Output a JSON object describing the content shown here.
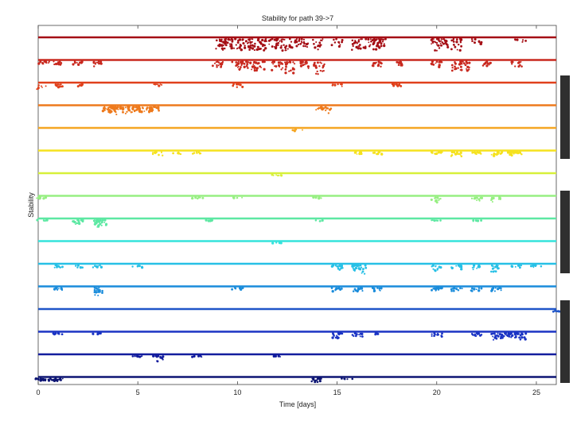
{
  "chart_data": {
    "type": "scatter",
    "title": "Stability for path 39->7",
    "xlabel": "Time [days]",
    "ylabel": "Stability",
    "xlim": [
      0,
      26
    ],
    "x_ticks": [
      "0",
      "5",
      "10",
      "15",
      "20",
      "25"
    ],
    "grid": false,
    "legend": "none",
    "series": [
      {
        "color": "#a50f15",
        "dips": [
          [
            9.2,
            1.0,
            4
          ],
          [
            9.5,
            1.0,
            3
          ],
          [
            9.9,
            1.0,
            3
          ],
          [
            10.3,
            1.0,
            3
          ],
          [
            10.8,
            1.1,
            5
          ],
          [
            11.2,
            1.1,
            4
          ],
          [
            11.8,
            1.0,
            3
          ],
          [
            12.2,
            1.1,
            5
          ],
          [
            12.8,
            0.9,
            3
          ],
          [
            13.3,
            1.0,
            3
          ],
          [
            14.0,
            1.0,
            3
          ],
          [
            15.0,
            0.7,
            2
          ],
          [
            16.0,
            1.0,
            4
          ],
          [
            16.6,
            0.9,
            3
          ],
          [
            17.1,
            1.0,
            4
          ],
          [
            17.2,
            0.6,
            2
          ],
          [
            20.0,
            1.1,
            5
          ],
          [
            20.3,
            0.9,
            3
          ],
          [
            21.0,
            1.1,
            5
          ],
          [
            22.0,
            0.6,
            2
          ],
          [
            24.2,
            0.4,
            1
          ]
        ]
      },
      {
        "color": "#c8281e",
        "dips": [
          [
            0.3,
            0.2,
            2
          ],
          [
            1.0,
            0.4,
            2
          ],
          [
            2.0,
            0.3,
            2
          ],
          [
            3.0,
            0.5,
            2
          ],
          [
            9.0,
            0.5,
            3
          ],
          [
            10.0,
            0.9,
            4
          ],
          [
            10.6,
            0.8,
            4
          ],
          [
            11.1,
            0.9,
            4
          ],
          [
            12.0,
            0.8,
            4
          ],
          [
            12.6,
            1.1,
            5
          ],
          [
            13.3,
            0.8,
            3
          ],
          [
            14.1,
            1.2,
            4
          ],
          [
            17.0,
            0.5,
            3
          ],
          [
            18.0,
            0.4,
            2
          ],
          [
            20.0,
            0.5,
            3
          ],
          [
            21.0,
            0.9,
            4
          ],
          [
            21.5,
            1.0,
            3
          ],
          [
            22.5,
            0.4,
            2
          ],
          [
            24.0,
            0.5,
            2
          ]
        ]
      },
      {
        "color": "#e0401b",
        "dips": [
          [
            0.2,
            0.5,
            1
          ],
          [
            1.0,
            0.3,
            2
          ],
          [
            2.0,
            0.2,
            1
          ],
          [
            6.0,
            0.2,
            1
          ],
          [
            10.0,
            0.3,
            2
          ],
          [
            15.0,
            0.2,
            1
          ],
          [
            18.0,
            0.2,
            2
          ]
        ]
      },
      {
        "color": "#ee7a1d",
        "dips": [
          [
            3.5,
            0.5,
            4
          ],
          [
            3.8,
            0.7,
            4
          ],
          [
            4.0,
            0.4,
            3
          ],
          [
            4.5,
            0.6,
            4
          ],
          [
            5.0,
            0.5,
            4
          ],
          [
            5.5,
            0.5,
            3
          ],
          [
            5.8,
            0.4,
            2
          ],
          [
            14.2,
            0.3,
            3
          ],
          [
            14.5,
            0.6,
            2
          ]
        ]
      },
      {
        "color": "#f5a623",
        "dips": [
          [
            13.0,
            0.2,
            1
          ]
        ]
      },
      {
        "color": "#f5e21f",
        "dips": [
          [
            6.0,
            0.3,
            2
          ],
          [
            7.0,
            0.2,
            1
          ],
          [
            8.0,
            0.2,
            1
          ],
          [
            16.0,
            0.2,
            1
          ],
          [
            17.0,
            0.2,
            2
          ],
          [
            20.0,
            0.2,
            2
          ],
          [
            21.0,
            0.4,
            2
          ],
          [
            22.0,
            0.2,
            2
          ],
          [
            23.0,
            0.4,
            3
          ],
          [
            23.8,
            0.3,
            3
          ],
          [
            24.0,
            0.2,
            2
          ]
        ]
      },
      {
        "color": "#d7f03a",
        "dips": [
          [
            12.0,
            0.1,
            1
          ]
        ]
      },
      {
        "color": "#97ef82",
        "dips": [
          [
            0.2,
            0.1,
            1
          ],
          [
            8.0,
            0.1,
            1
          ],
          [
            10.0,
            0.1,
            1
          ],
          [
            14.0,
            0.1,
            1
          ],
          [
            20.0,
            0.5,
            2
          ],
          [
            22.0,
            0.4,
            2
          ],
          [
            23.0,
            0.5,
            2
          ]
        ]
      },
      {
        "color": "#5de8a3",
        "dips": [
          [
            0.2,
            0.1,
            1
          ],
          [
            2.0,
            0.4,
            4
          ],
          [
            3.0,
            0.5,
            4
          ],
          [
            3.2,
            0.7,
            3
          ],
          [
            8.5,
            0.1,
            1
          ],
          [
            14.0,
            0.1,
            1
          ],
          [
            20.0,
            0.1,
            1
          ],
          [
            22.0,
            0.1,
            1
          ]
        ]
      },
      {
        "color": "#35e3dc",
        "dips": [
          [
            12.0,
            0.1,
            1
          ]
        ]
      },
      {
        "color": "#27c0e6",
        "dips": [
          [
            1.0,
            0.2,
            2
          ],
          [
            2.0,
            0.2,
            1
          ],
          [
            3.0,
            0.2,
            1
          ],
          [
            5.0,
            0.2,
            1
          ],
          [
            15.0,
            0.5,
            3
          ],
          [
            16.0,
            0.5,
            3
          ],
          [
            16.2,
            0.8,
            2
          ],
          [
            20.0,
            0.5,
            3
          ],
          [
            21.0,
            0.4,
            2
          ],
          [
            22.0,
            0.4,
            2
          ],
          [
            23.0,
            0.6,
            3
          ],
          [
            24.0,
            0.2,
            1
          ],
          [
            25.0,
            0.2,
            1
          ]
        ]
      },
      {
        "color": "#1a8cdb",
        "dips": [
          [
            1.0,
            0.2,
            2
          ],
          [
            3.0,
            0.4,
            2
          ],
          [
            3.1,
            0.8,
            2
          ],
          [
            10.0,
            0.2,
            1
          ],
          [
            15.0,
            0.3,
            2
          ],
          [
            16.0,
            0.3,
            2
          ],
          [
            17.0,
            0.3,
            2
          ],
          [
            20.0,
            0.3,
            3
          ],
          [
            21.0,
            0.3,
            3
          ],
          [
            22.0,
            0.3,
            2
          ],
          [
            23.0,
            0.3,
            2
          ]
        ]
      },
      {
        "color": "#1f55c8",
        "dips": [
          [
            26.0,
            0.1,
            1
          ]
        ]
      },
      {
        "color": "#1b34c4",
        "dips": [
          [
            1.0,
            0.1,
            1
          ],
          [
            3.0,
            0.1,
            1
          ],
          [
            15.0,
            0.5,
            3
          ],
          [
            16.0,
            0.3,
            2
          ],
          [
            17.0,
            0.2,
            1
          ],
          [
            20.0,
            0.3,
            2
          ],
          [
            22.0,
            0.3,
            2
          ],
          [
            23.0,
            0.6,
            4
          ],
          [
            23.5,
            0.5,
            3
          ],
          [
            24.0,
            0.4,
            3
          ],
          [
            24.2,
            0.6,
            2
          ]
        ]
      },
      {
        "color": "#131d9e",
        "dips": [
          [
            5.0,
            0.1,
            1
          ],
          [
            6.0,
            0.5,
            3
          ],
          [
            8.0,
            0.1,
            1
          ],
          [
            12.0,
            0.1,
            1
          ]
        ]
      },
      {
        "color": "#0d1573",
        "dips": [
          [
            0.1,
            0.3,
            3
          ],
          [
            0.5,
            0.2,
            2
          ],
          [
            1.0,
            0.3,
            2
          ],
          [
            14.0,
            0.4,
            3
          ],
          [
            15.5,
            0.1,
            1
          ]
        ]
      }
    ]
  }
}
